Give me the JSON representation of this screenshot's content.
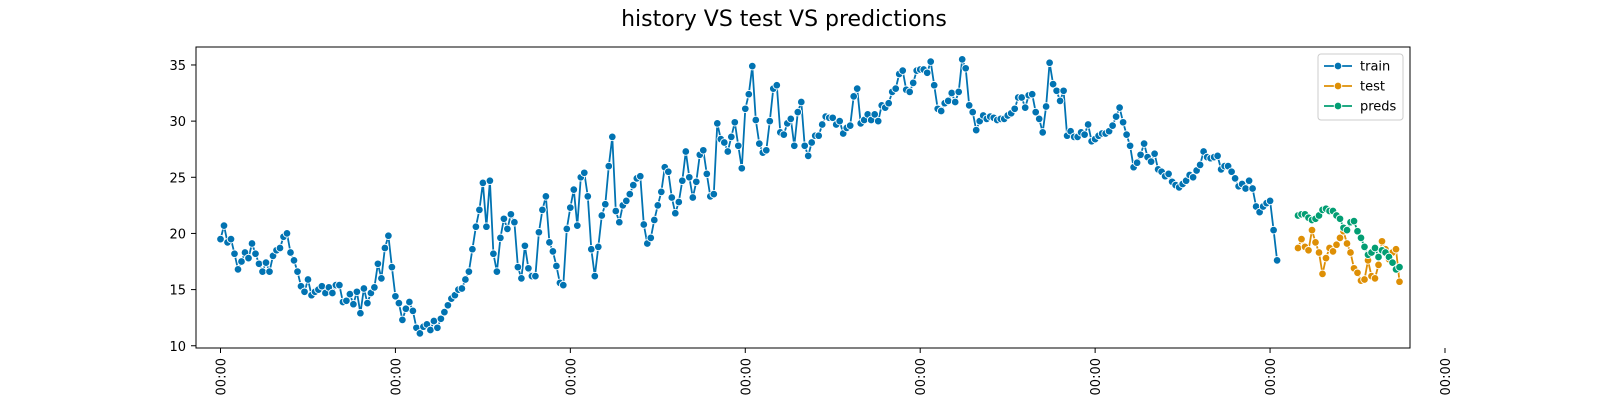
{
  "chart_data": {
    "type": "line",
    "title": "history VS test VS predictions",
    "xlabel": "",
    "ylabel": "",
    "ylim": [
      9.8,
      36.6
    ],
    "yticks": [
      10,
      15,
      20,
      25,
      30,
      35
    ],
    "xticks": [
      "00:00",
      "00:00",
      "00:00",
      "00:00",
      "00:00",
      "00:00",
      "00:00",
      "00:00",
      ""
    ],
    "legend_position": "top-right",
    "grid": false,
    "series": [
      {
        "name": "train",
        "color": "#0173b2",
        "start_index": 0,
        "values": [
          19.5,
          20.7,
          19.2,
          19.5,
          18.2,
          16.8,
          17.5,
          18.3,
          17.8,
          19.1,
          18.2,
          17.3,
          16.6,
          17.4,
          16.6,
          18.0,
          18.5,
          18.7,
          19.7,
          20.0,
          18.3,
          17.6,
          16.6,
          15.3,
          14.8,
          15.9,
          14.5,
          14.8,
          15.0,
          15.3,
          14.7,
          15.2,
          14.7,
          15.4,
          15.4,
          13.9,
          14.0,
          14.6,
          13.7,
          14.8,
          12.9,
          15.1,
          13.8,
          14.7,
          15.2,
          17.3,
          16.0,
          18.7,
          19.8,
          17.0,
          14.4,
          13.8,
          12.3,
          13.3,
          13.9,
          13.1,
          11.6,
          11.1,
          11.7,
          11.9,
          11.4,
          12.2,
          11.6,
          12.4,
          13.0,
          13.6,
          14.2,
          14.5,
          15.0,
          15.1,
          15.9,
          16.6,
          18.6,
          20.6,
          22.1,
          24.5,
          20.6,
          24.7,
          18.2,
          16.6,
          19.6,
          21.3,
          20.4,
          21.7,
          21.0,
          17.0,
          16.0,
          18.9,
          16.9,
          16.2,
          16.2,
          20.1,
          22.1,
          23.3,
          19.2,
          18.4,
          17.1,
          15.6,
          15.4,
          20.4,
          22.3,
          23.9,
          20.7,
          25.0,
          25.4,
          23.3,
          18.6,
          16.2,
          18.8,
          21.6,
          22.6,
          26.0,
          28.6,
          22.0,
          21.0,
          22.5,
          22.9,
          23.5,
          24.3,
          24.9,
          25.1,
          20.8,
          19.1,
          19.6,
          21.2,
          22.5,
          23.7,
          25.9,
          25.5,
          23.2,
          21.8,
          22.8,
          24.7,
          27.3,
          25.0,
          23.2,
          24.6,
          27.0,
          27.4,
          25.3,
          23.3,
          23.5,
          29.8,
          28.4,
          28.1,
          27.3,
          28.6,
          29.9,
          27.8,
          25.8,
          31.1,
          32.4,
          34.9,
          30.1,
          28.0,
          27.2,
          27.4,
          30.0,
          32.9,
          33.2,
          29.0,
          28.8,
          29.8,
          30.2,
          27.8,
          30.8,
          31.7,
          27.8,
          26.9,
          28.1,
          28.7,
          28.7,
          29.7,
          30.4,
          30.3,
          30.3,
          29.7,
          30.0,
          28.9,
          29.4,
          29.6,
          32.2,
          32.9,
          29.8,
          30.1,
          30.6,
          30.1,
          30.6,
          30.0,
          31.4,
          31.2,
          31.6,
          32.6,
          32.9,
          34.2,
          34.5,
          32.8,
          32.6,
          33.4,
          34.5,
          34.6,
          34.6,
          34.3,
          35.3,
          33.2,
          31.1,
          30.9,
          31.6,
          31.8,
          32.5,
          31.7,
          32.6,
          35.5,
          34.7,
          31.4,
          30.8,
          29.2,
          30.0,
          30.5,
          30.2,
          30.4,
          30.3,
          30.1,
          30.2,
          30.2,
          30.5,
          30.7,
          31.1,
          32.1,
          32.1,
          31.2,
          32.3,
          32.4,
          30.8,
          30.2,
          29.0,
          31.3,
          35.2,
          33.3,
          32.7,
          31.8,
          32.7,
          28.7,
          29.1,
          28.6,
          28.6,
          29.0,
          28.8,
          29.7,
          28.2,
          28.4,
          28.7,
          28.9,
          28.9,
          29.1,
          29.6,
          30.4,
          31.2,
          29.9,
          28.8,
          27.8,
          25.9,
          26.3,
          27.0,
          28.0,
          26.8,
          26.4,
          27.1,
          25.7,
          25.5,
          25.1,
          25.3,
          24.6,
          24.3,
          24.1,
          24.4,
          24.7,
          25.2,
          25.0,
          25.6,
          26.1,
          27.3,
          26.8,
          26.7,
          26.8,
          26.9,
          25.7,
          26.0,
          26.0,
          25.5,
          24.9,
          24.2,
          24.4,
          24.0,
          24.7,
          24.0,
          22.4,
          21.9,
          22.4,
          22.7,
          22.9,
          20.3,
          17.6
        ]
      },
      {
        "name": "test",
        "color": "#de8f05",
        "start_index": 308,
        "values": [
          18.7,
          19.5,
          18.8,
          18.5,
          20.3,
          19.2,
          18.3,
          16.4,
          17.8,
          18.7,
          18.4,
          19.0,
          19.6,
          20.2,
          19.1,
          18.3,
          16.9,
          16.5,
          15.8,
          15.9,
          17.6,
          16.2,
          16.0,
          17.2,
          19.3,
          18.6,
          17.7,
          18.3,
          18.6,
          15.7
        ]
      },
      {
        "name": "preds",
        "color": "#029e73",
        "start_index": 308,
        "values": [
          21.6,
          21.7,
          21.7,
          21.4,
          21.2,
          21.3,
          21.6,
          22.1,
          22.2,
          22.0,
          22.0,
          21.6,
          21.3,
          20.5,
          20.3,
          21.0,
          21.1,
          20.2,
          19.6,
          18.8,
          18.1,
          18.3,
          18.7,
          17.9,
          18.5,
          18.3,
          17.9,
          17.4,
          16.8,
          17.0
        ]
      }
    ]
  }
}
